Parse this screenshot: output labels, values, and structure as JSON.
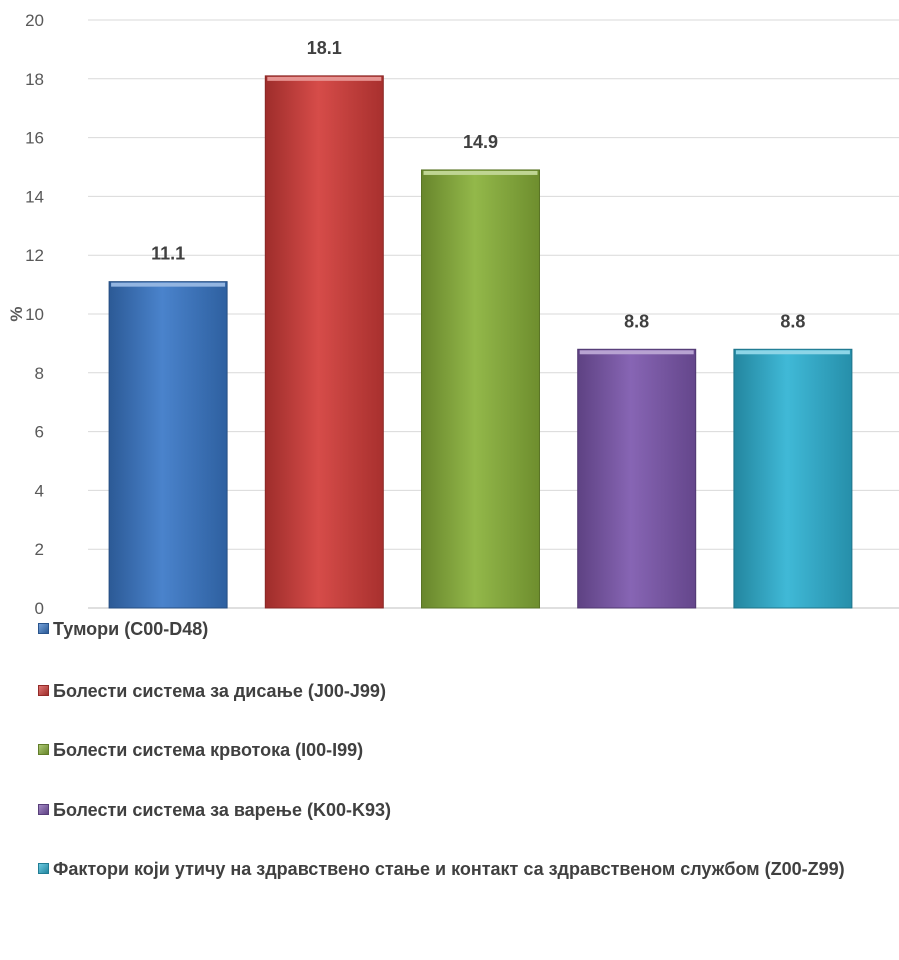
{
  "chart_data": {
    "type": "bar",
    "ylabel": "%",
    "ylim": [
      0,
      20
    ],
    "yticks": [
      0,
      2,
      4,
      6,
      8,
      10,
      12,
      14,
      16,
      18,
      20
    ],
    "grid": true,
    "legend_position": "bottom",
    "series": [
      {
        "name": "Тумори (C00-D48)",
        "value": 11.1,
        "label": "11.1",
        "color": "#3a78c8"
      },
      {
        "name": "Болести система за дисање (J00-J99)",
        "value": 18.1,
        "label": "18.1",
        "color": "#d23c39"
      },
      {
        "name": "Болести система крвотока (I00-I99)",
        "value": 14.9,
        "label": "14.9",
        "color": "#8ab23a"
      },
      {
        "name": "Болести система за варење (K00-K93)",
        "value": 8.8,
        "label": "8.8",
        "color": "#7d58ae"
      },
      {
        "name": "Фактори који утичу на здравствено стање и контакт са здравственом службом (Z00-Z99)",
        "value": 8.8,
        "label": "8.8",
        "color": "#2fb3d4"
      }
    ]
  }
}
